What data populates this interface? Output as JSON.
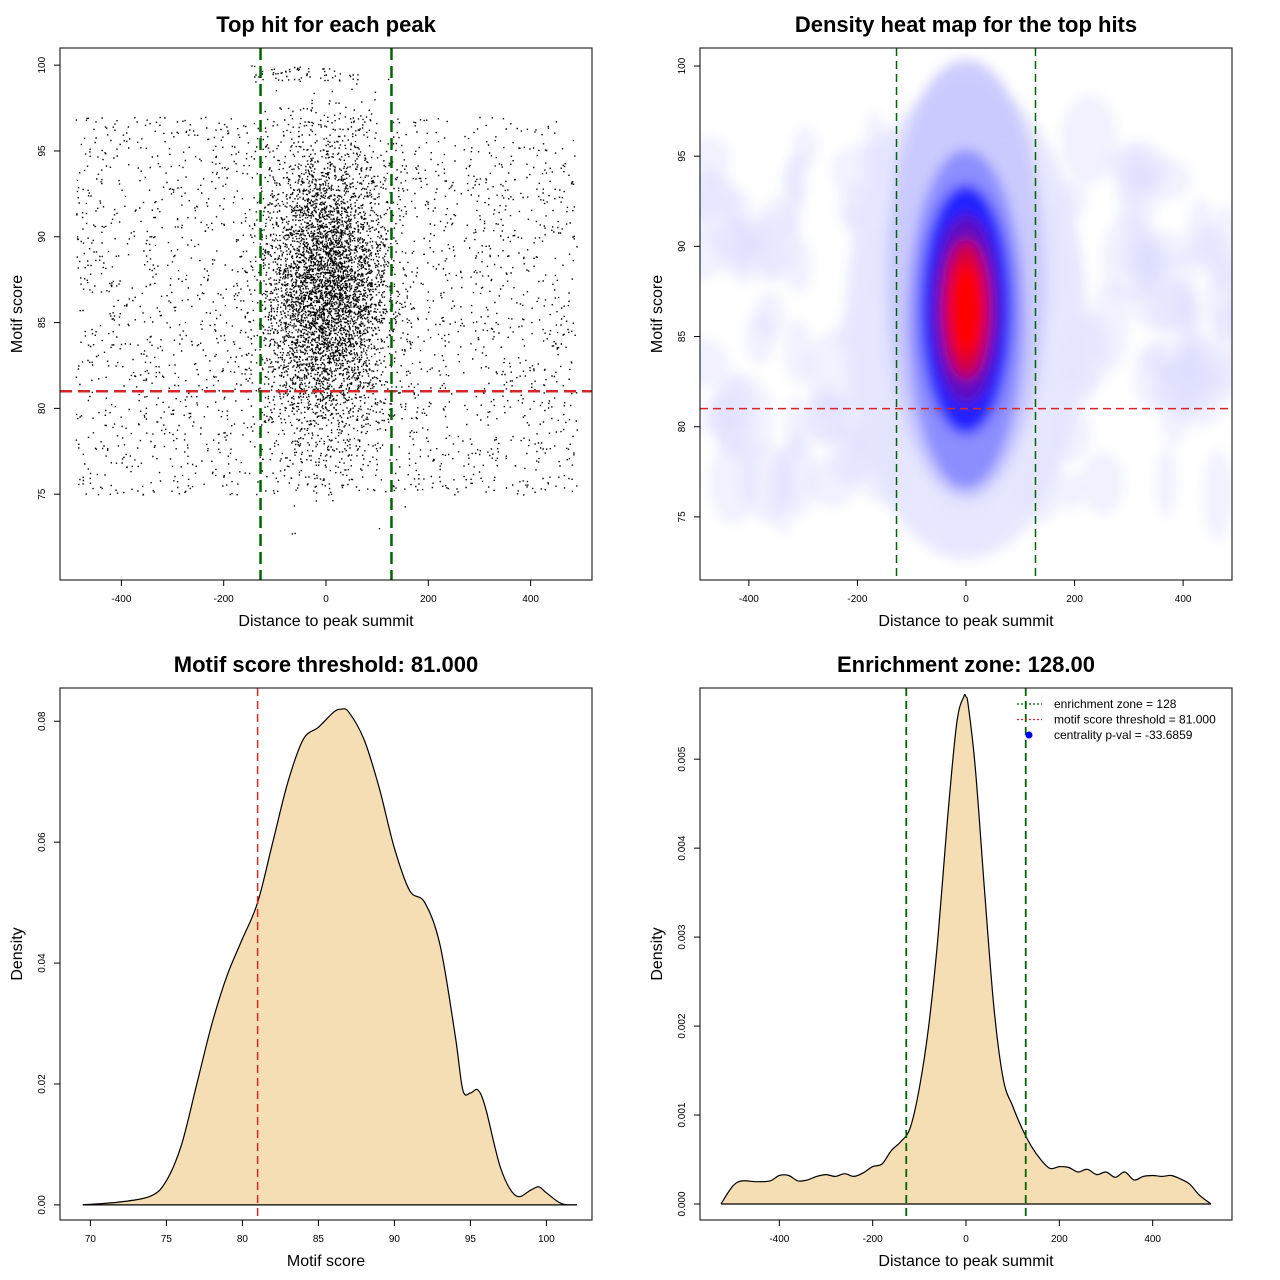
{
  "chart_data": [
    {
      "type": "scatter",
      "title": "Top hit for each peak",
      "xlabel": "Distance to peak summit",
      "ylabel": "Motif score",
      "xlim": [
        -520,
        520
      ],
      "ylim": [
        70,
        101
      ],
      "xticks": [
        -400,
        -200,
        0,
        200,
        400
      ],
      "yticks": [
        75,
        80,
        85,
        90,
        95,
        100
      ],
      "threshold_line": {
        "y": 81,
        "color": "#d62728",
        "style": "dashed"
      },
      "zone_lines": {
        "x": [
          -128,
          128
        ],
        "color": "#006400",
        "style": "dashed"
      },
      "point_groups": [
        {
          "description": "central cluster",
          "x_center": 0,
          "x_sd": 60,
          "y_center": 87,
          "y_sd": 4.2,
          "approx_count": 5000
        },
        {
          "description": "background",
          "x_range": [
            -490,
            490
          ],
          "y_range": [
            75,
            97
          ],
          "approx_count": 2500
        },
        {
          "description": "high-score band",
          "x_range": [
            -150,
            60
          ],
          "y_range": [
            99,
            100
          ],
          "approx_count": 60
        }
      ],
      "grid": false,
      "colors": {
        "points": "#000000"
      }
    },
    {
      "type": "heatmap",
      "title": "Density heat map for the top hits",
      "xlabel": "Distance to peak summit",
      "ylabel": "Motif score",
      "xlim": [
        -490,
        490
      ],
      "ylim": [
        71.5,
        101
      ],
      "xticks": [
        -400,
        -200,
        0,
        200,
        400
      ],
      "yticks": [
        75,
        80,
        85,
        90,
        95,
        100
      ],
      "threshold_line": {
        "y": 81,
        "color": "#d62728",
        "style": "dashed"
      },
      "zone_lines": {
        "x": [
          -128,
          128
        ],
        "color": "#006400",
        "style": "dashed"
      },
      "density_peak": {
        "x": 0,
        "y": 86.5
      },
      "colormap": [
        "#ffffff",
        "#0000ff",
        "#ff0000"
      ]
    },
    {
      "type": "area",
      "title": "Motif score threshold: 81.000",
      "xlabel": "Motif score",
      "ylabel": "Density",
      "xlim": [
        68,
        103
      ],
      "ylim": [
        -0.0025,
        0.0855
      ],
      "xticks": [
        70,
        75,
        80,
        85,
        90,
        95,
        100
      ],
      "yticks": [
        0.0,
        0.02,
        0.04,
        0.06,
        0.08
      ],
      "ytick_labels": [
        "0.00",
        "0.02",
        "0.04",
        "0.06",
        "0.08"
      ],
      "threshold_line": {
        "x": 81,
        "color": "#d62728",
        "style": "dashed"
      },
      "fill_color": "#f5deb3",
      "x": [
        69.5,
        72,
        74,
        75,
        76,
        77,
        78,
        79,
        80,
        81,
        82,
        83,
        84,
        85,
        86,
        86.5,
        87,
        88,
        89,
        90,
        91,
        92,
        93,
        94,
        94.5,
        95,
        95.5,
        96,
        97,
        98,
        99,
        99.5,
        100,
        101,
        102
      ],
      "y": [
        0,
        0.0005,
        0.0015,
        0.004,
        0.01,
        0.02,
        0.03,
        0.038,
        0.044,
        0.05,
        0.06,
        0.07,
        0.077,
        0.079,
        0.0815,
        0.082,
        0.0815,
        0.077,
        0.069,
        0.059,
        0.052,
        0.05,
        0.043,
        0.028,
        0.019,
        0.0185,
        0.019,
        0.016,
        0.006,
        0.0015,
        0.0025,
        0.003,
        0.002,
        0.0002,
        0
      ]
    },
    {
      "type": "area",
      "title": "Enrichment zone: 128.00",
      "xlabel": "Distance to peak summit",
      "ylabel": "Density",
      "xlim": [
        -570,
        570
      ],
      "ylim": [
        -0.00018,
        0.0058
      ],
      "xticks": [
        -400,
        -200,
        0,
        200,
        400
      ],
      "yticks": [
        0.0,
        0.001,
        0.002,
        0.003,
        0.004,
        0.005
      ],
      "ytick_labels": [
        "0.000",
        "0.001",
        "0.002",
        "0.003",
        "0.004",
        "0.005"
      ],
      "zone_lines": {
        "x": [
          -128,
          128
        ],
        "color": "#006400",
        "style": "dashed"
      },
      "fill_color": "#f5deb3",
      "x": [
        -525,
        -500,
        -480,
        -450,
        -420,
        -400,
        -380,
        -360,
        -340,
        -320,
        -300,
        -280,
        -260,
        -240,
        -220,
        -200,
        -180,
        -160,
        -140,
        -120,
        -100,
        -80,
        -60,
        -40,
        -20,
        -5,
        0,
        5,
        20,
        40,
        60,
        80,
        100,
        120,
        140,
        160,
        180,
        200,
        220,
        240,
        260,
        280,
        300,
        320,
        340,
        360,
        380,
        400,
        420,
        440,
        460,
        480,
        500,
        525
      ],
      "y": [
        0.0,
        0.0002,
        0.00026,
        0.00025,
        0.00026,
        0.00032,
        0.00032,
        0.00026,
        0.00027,
        0.00031,
        0.00033,
        0.00031,
        0.00034,
        0.00031,
        0.00035,
        0.00042,
        0.00045,
        0.0006,
        0.0007,
        0.00085,
        0.0013,
        0.002,
        0.003,
        0.0043,
        0.0054,
        0.0057,
        0.0057,
        0.0056,
        0.0049,
        0.0035,
        0.0022,
        0.0014,
        0.0011,
        0.00085,
        0.00065,
        0.0005,
        0.0004,
        0.00042,
        0.00041,
        0.00036,
        0.00039,
        0.00033,
        0.00036,
        0.0003,
        0.00036,
        0.00027,
        0.00031,
        0.00032,
        0.00031,
        0.00032,
        0.00028,
        0.00022,
        0.0001,
        0.0
      ],
      "legend": {
        "position": "top-right",
        "entries": [
          {
            "label": "enrichment zone = 128",
            "color": "#006400",
            "style": "dotted-line"
          },
          {
            "label": "motif score threshold = 81.000",
            "color": "#d62728",
            "style": "dotted-line"
          },
          {
            "label": "centrality p-val = -33.6859",
            "color": "#0000ff",
            "style": "point"
          }
        ]
      }
    }
  ]
}
